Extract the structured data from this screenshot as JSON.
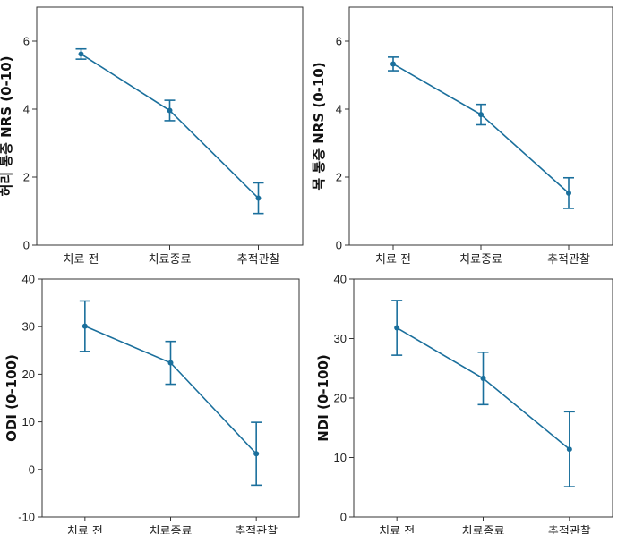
{
  "chart_data": [
    {
      "type": "line",
      "ylabel": "허리 통증 NRS (0-10)",
      "categories": [
        "치료 전",
        "치료종료",
        "추적관찰"
      ],
      "values": [
        5.62,
        3.96,
        1.38
      ],
      "error_low": [
        5.47,
        3.66,
        0.93
      ],
      "error_high": [
        5.77,
        4.26,
        1.83
      ],
      "ylim": [
        0,
        7
      ],
      "yticks": [
        0,
        2,
        4,
        6
      ],
      "grid": false,
      "color": "#1a6f9c"
    },
    {
      "type": "line",
      "ylabel": "목 통증 NRS (0-10)",
      "categories": [
        "치료 전",
        "치료종료",
        "추적관찰"
      ],
      "values": [
        5.33,
        3.84,
        1.53
      ],
      "error_low": [
        5.13,
        3.54,
        1.08
      ],
      "error_high": [
        5.53,
        4.14,
        1.98
      ],
      "ylim": [
        0,
        7
      ],
      "yticks": [
        0,
        2,
        4,
        6
      ],
      "grid": false,
      "color": "#1a6f9c"
    },
    {
      "type": "line",
      "ylabel": "ODI (0-100)",
      "categories": [
        "치료 전",
        "치료종료",
        "추적관찰"
      ],
      "values": [
        30.1,
        22.4,
        3.3
      ],
      "error_low": [
        24.8,
        17.9,
        -3.3
      ],
      "error_high": [
        35.4,
        26.9,
        9.9
      ],
      "ylim": [
        -10,
        40
      ],
      "yticks": [
        -10,
        0,
        10,
        20,
        30,
        40
      ],
      "grid": false,
      "color": "#1a6f9c"
    },
    {
      "type": "line",
      "ylabel": "NDI (0-100)",
      "categories": [
        "치료 전",
        "치료종료",
        "추적관찰"
      ],
      "values": [
        31.8,
        23.3,
        11.4
      ],
      "error_low": [
        27.2,
        18.9,
        5.1
      ],
      "error_high": [
        36.4,
        27.7,
        17.7
      ],
      "ylim": [
        0,
        40
      ],
      "yticks": [
        0,
        10,
        20,
        30,
        40
      ],
      "grid": false,
      "color": "#1a6f9c"
    }
  ]
}
